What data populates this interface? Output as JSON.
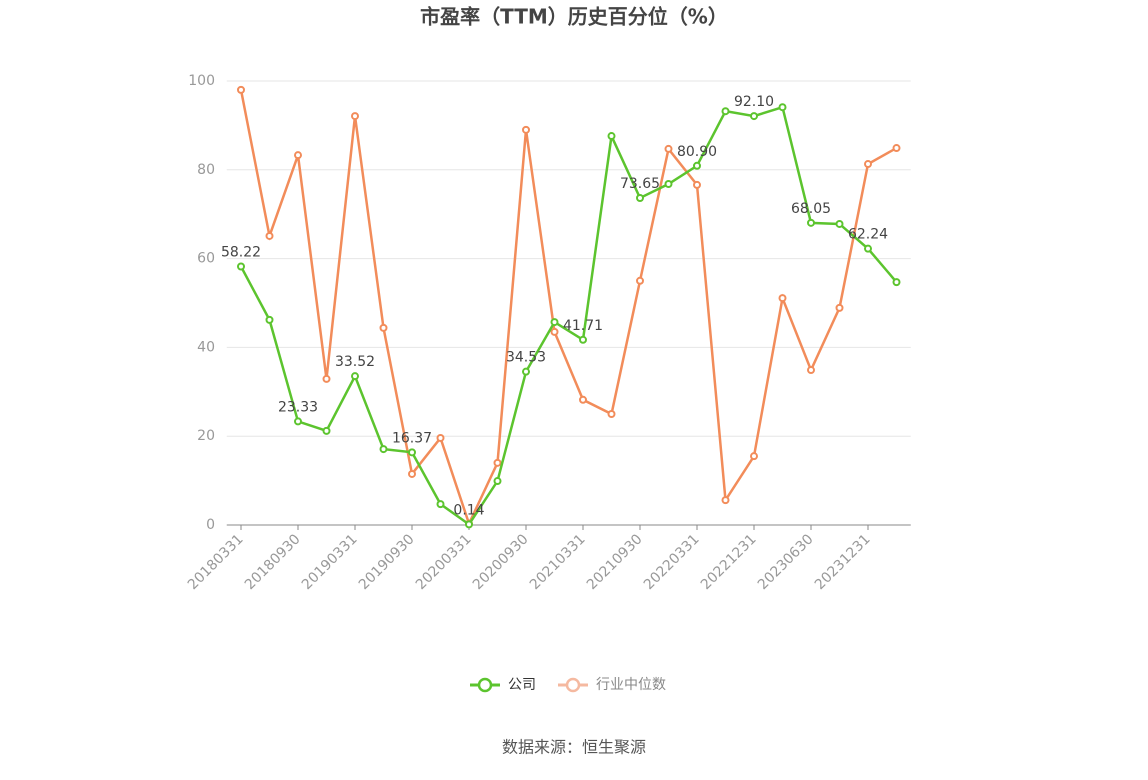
{
  "chart_data": {
    "type": "line",
    "title": "市盈率（TTM）历史百分位（%）",
    "source": "数据来源：恒生聚源",
    "categories": [
      "20180331",
      null,
      "20180930",
      null,
      "20190331",
      null,
      "20190930",
      null,
      "20200331",
      null,
      "20200930",
      null,
      "20210331",
      null,
      "20210930",
      null,
      "20220331",
      null,
      "20221231",
      null,
      "20230630",
      null,
      "20231231",
      null
    ],
    "series": [
      {
        "name": "公司",
        "color": "#5cc42e",
        "values": [
          58.22,
          46.2,
          23.33,
          21.2,
          33.52,
          17.1,
          16.37,
          4.7,
          0.14,
          9.9,
          34.53,
          45.7,
          41.71,
          87.6,
          73.65,
          76.8,
          80.9,
          93.2,
          92.1,
          94.1,
          68.05,
          67.8,
          62.24,
          54.7
        ],
        "value_labels": [
          "58.22",
          null,
          "23.33",
          null,
          "33.52",
          null,
          "16.37",
          null,
          "0.14",
          null,
          "34.53",
          null,
          "41.71",
          null,
          "73.65",
          null,
          "80.90",
          null,
          "92.10",
          null,
          "68.05",
          null,
          "62.24",
          null
        ]
      },
      {
        "name": "行业中位数",
        "color": "#f28c5a",
        "values": [
          98.0,
          65.1,
          83.3,
          32.9,
          92.1,
          44.4,
          11.5,
          19.6,
          0.3,
          14.0,
          89.0,
          43.5,
          28.2,
          25.0,
          55.0,
          84.7,
          76.6,
          5.6,
          15.5,
          51.1,
          34.9,
          48.9,
          81.3,
          84.9
        ]
      }
    ],
    "ylim": [
      0,
      100
    ],
    "yticks": [
      0,
      20,
      40,
      60,
      80,
      100
    ],
    "grid": true
  }
}
